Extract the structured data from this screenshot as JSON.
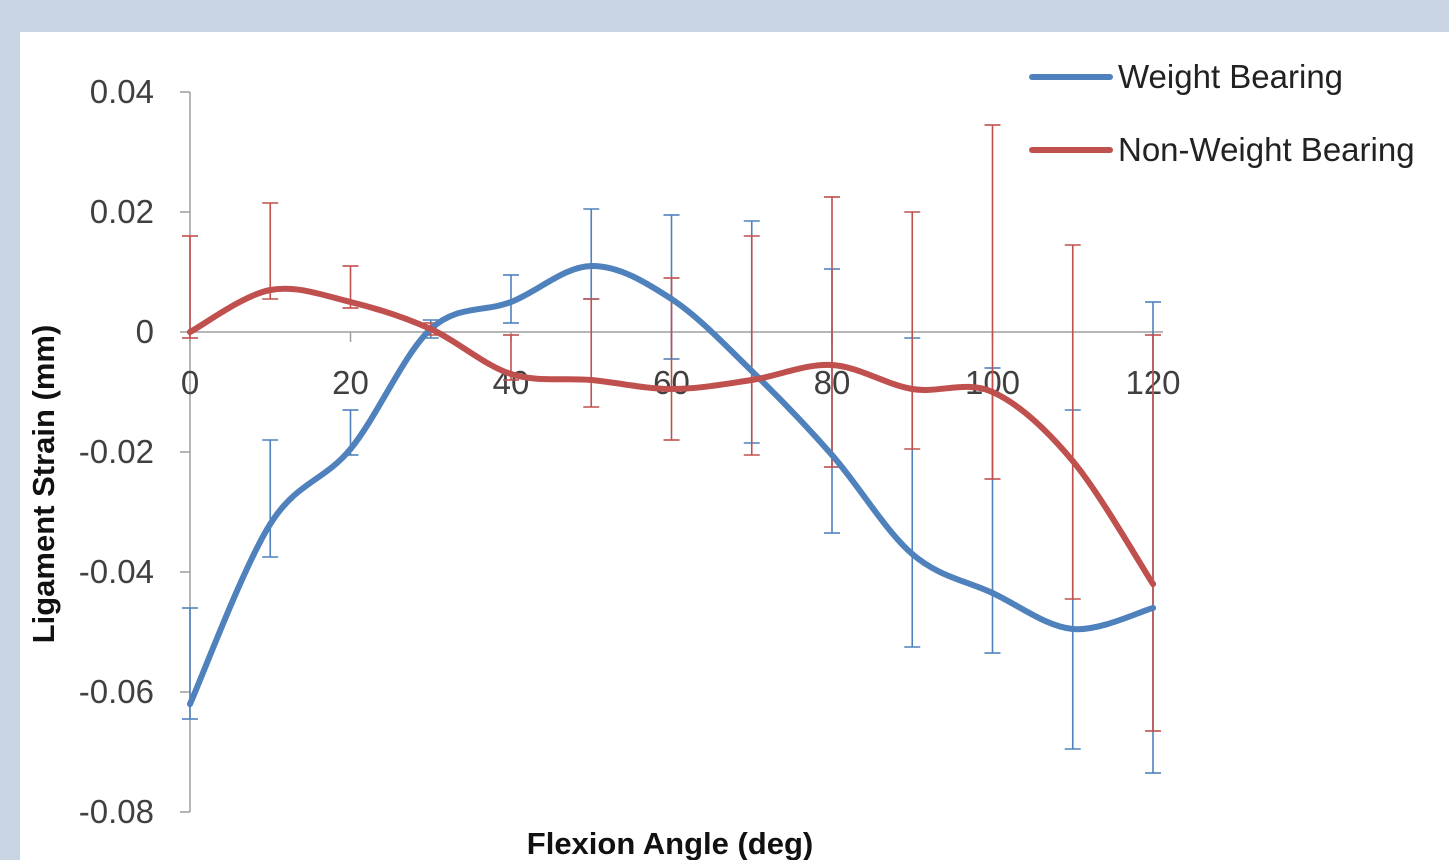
{
  "colors": {
    "weight_bearing": "#4f81bd",
    "non_weight_bearing": "#c0504d",
    "axis": "#9e9e9e",
    "background": "#c8d4e1",
    "panel": "#ffffff"
  },
  "chart_data": {
    "type": "line",
    "title": "",
    "xlabel": "Flexion Angle (deg)",
    "ylabel": "Ligament Strain (mm)",
    "xlim": [
      0,
      120
    ],
    "ylim": [
      -0.08,
      0.04
    ],
    "x_ticks": [
      "0",
      "20",
      "40",
      "60",
      "80",
      "100",
      "120"
    ],
    "y_ticks": [
      "0.04",
      "0.02",
      "0",
      "-0.02",
      "-0.04",
      "-0.06",
      "-0.08"
    ],
    "x_tick_values": [
      0,
      20,
      40,
      60,
      80,
      100,
      120
    ],
    "y_tick_values": [
      0.04,
      0.02,
      0,
      -0.02,
      -0.04,
      -0.06,
      -0.08
    ],
    "grid": false,
    "legend_position": "top-right",
    "smooth": true,
    "x": [
      0,
      10,
      20,
      30,
      40,
      50,
      60,
      70,
      80,
      90,
      100,
      110,
      120
    ],
    "series": [
      {
        "name": "Weight Bearing",
        "color_key": "weight_bearing",
        "values": [
          -0.062,
          -0.032,
          -0.0195,
          0.0005,
          0.005,
          0.011,
          0.0055,
          -0.0065,
          -0.0205,
          -0.037,
          -0.0435,
          -0.0495,
          -0.046
        ],
        "error_upper": [
          -0.046,
          -0.018,
          -0.013,
          0.002,
          0.0095,
          0.0205,
          0.0195,
          0.0185,
          0.0105,
          -0.001,
          -0.006,
          -0.013,
          0.005
        ],
        "error_lower": [
          -0.0645,
          -0.0375,
          -0.0205,
          -0.001,
          0.0015,
          0.0055,
          -0.0045,
          -0.0185,
          -0.0335,
          -0.0525,
          -0.0535,
          -0.0695,
          -0.0735
        ]
      },
      {
        "name": "Non-Weight Bearing",
        "color_key": "non_weight_bearing",
        "values": [
          0.0,
          0.007,
          0.005,
          0.0005,
          -0.007,
          -0.008,
          -0.0095,
          -0.008,
          -0.0055,
          -0.0095,
          -0.01,
          -0.0215,
          -0.042
        ],
        "error_upper": [
          0.016,
          0.0215,
          0.011,
          0.0015,
          -0.0005,
          0.0055,
          0.009,
          0.016,
          0.0225,
          0.02,
          0.0345,
          0.0145,
          -0.0005
        ],
        "error_lower": [
          -0.001,
          0.0055,
          0.004,
          -0.0005,
          -0.008,
          -0.0125,
          -0.018,
          -0.0205,
          -0.0225,
          -0.0195,
          -0.0245,
          -0.0445,
          -0.0665
        ]
      }
    ]
  }
}
